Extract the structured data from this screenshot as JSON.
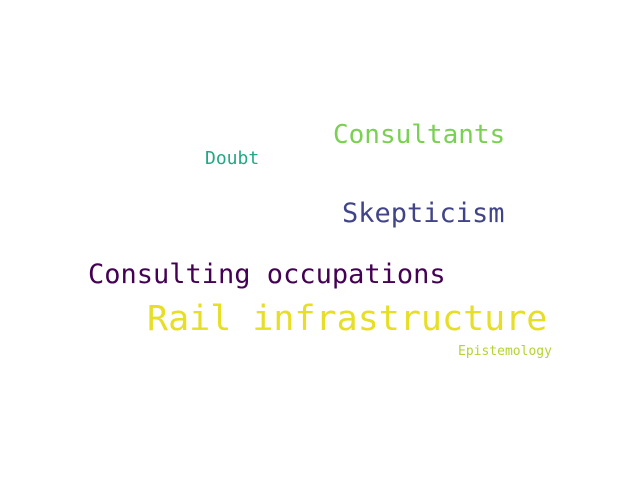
{
  "words": [
    {
      "text": "Consultants",
      "color": "#7ad151"
    },
    {
      "text": "Doubt",
      "color": "#22a884"
    },
    {
      "text": "Skepticism",
      "color": "#414487"
    },
    {
      "text": "Consulting occupations",
      "color": "#440154"
    },
    {
      "text": "Rail infrastructure",
      "color": "#e6df26"
    },
    {
      "text": "Epistemology",
      "color": "#b4d334"
    }
  ]
}
